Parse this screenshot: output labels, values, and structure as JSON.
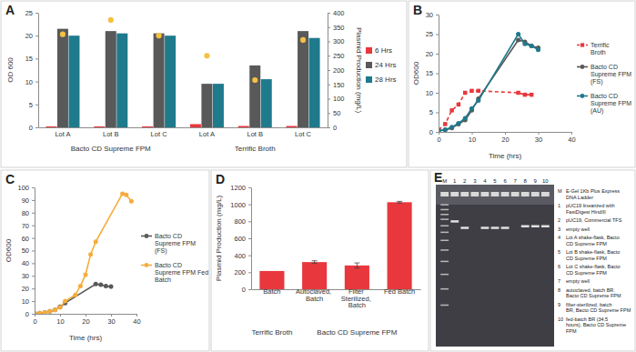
{
  "chart_data": [
    {
      "panel": "A",
      "type": "bar",
      "categories": [
        "Lot A",
        "Lot B",
        "Lot C",
        "Lot A",
        "Lot B",
        "Lot C"
      ],
      "category_groups": [
        {
          "label": "Bacto CD Supreme FPM",
          "size": 3
        },
        {
          "label": "Terrific Broth",
          "size": 3
        }
      ],
      "y_label": "OD 600",
      "y2_label": "Plasmid Production (mg/L)",
      "ylim": [
        0,
        25
      ],
      "yticks": [
        0,
        5,
        10,
        15,
        20,
        25
      ],
      "y2lim": [
        0,
        400
      ],
      "y2ticks": [
        0,
        50,
        100,
        150,
        200,
        250,
        300,
        350,
        400
      ],
      "legend": "right",
      "series": [
        {
          "name": "6 Hrs",
          "color": "#e8383d",
          "values": [
            0.2,
            0.2,
            0.2,
            0.7,
            0.3,
            0.3
          ]
        },
        {
          "name": "24 Hrs",
          "color": "#595959",
          "values": [
            21.5,
            21,
            20.5,
            9.5,
            13.5,
            21
          ]
        },
        {
          "name": "28 Hrs",
          "color": "#1f7a8c",
          "values": [
            20,
            20.5,
            20,
            9.5,
            10.5,
            19.5
          ]
        },
        {
          "type": "scatter",
          "axis": "y2",
          "marker": "circle",
          "color": "#f4c143",
          "values": [
            325,
            375,
            320,
            250,
            165,
            305
          ]
        }
      ]
    },
    {
      "panel": "B",
      "type": "line",
      "x_label": "Time (hrs)",
      "y_label": "OD600",
      "xlim": [
        0,
        40
      ],
      "xticks": [
        0,
        10,
        20,
        30,
        40
      ],
      "ylim": [
        0,
        30
      ],
      "yticks": [
        0,
        5,
        10,
        15,
        20,
        25,
        30
      ],
      "legend": "right",
      "series": [
        {
          "name": "Terrific Broth",
          "color": "#e8383d",
          "marker": "square",
          "line_style": "dashed",
          "x": [
            0,
            2,
            4,
            6,
            8,
            10,
            12,
            24,
            26,
            28
          ],
          "values": [
            0.5,
            2,
            5.5,
            7,
            10,
            10.5,
            10.5,
            10,
            9.5,
            9.5
          ]
        },
        {
          "name": "Bacto CD Supreme FPM (FS)",
          "color": "#595959",
          "marker": "circle",
          "line_style": "solid",
          "x": [
            0,
            2,
            4,
            6,
            8,
            10,
            12,
            24,
            26,
            28,
            30
          ],
          "values": [
            0.3,
            0.5,
            1,
            2,
            3,
            5.5,
            8.5,
            23.5,
            23,
            22,
            21.5
          ]
        },
        {
          "name": "Bacto CD Supreme FPM (AU)",
          "color": "#1f7a8c",
          "marker": "circle",
          "line_style": "solid",
          "x": [
            0,
            2,
            4,
            6,
            8,
            10,
            12,
            24,
            26,
            28,
            30
          ],
          "values": [
            0.3,
            0.6,
            1.2,
            2.2,
            3.5,
            6,
            8,
            25,
            22.5,
            22,
            21
          ]
        }
      ]
    },
    {
      "panel": "C",
      "type": "line",
      "x_label": "Time (hrs)",
      "y_label": "OD600",
      "xlim": [
        0,
        40
      ],
      "xticks": [
        0,
        10,
        20,
        30,
        40
      ],
      "ylim": [
        0,
        100
      ],
      "yticks": [
        0,
        10,
        20,
        30,
        40,
        50,
        60,
        70,
        80,
        90,
        100
      ],
      "legend": "right",
      "series": [
        {
          "name": "Bacto CD Supreme FPM (FS)",
          "color": "#595959",
          "marker": "circle",
          "line_style": "solid",
          "x": [
            0,
            2,
            4,
            6,
            8,
            10,
            12,
            24,
            26,
            28,
            30
          ],
          "values": [
            0.3,
            0.5,
            1,
            2,
            3,
            5.5,
            8.5,
            23.5,
            23,
            22,
            21.5
          ]
        },
        {
          "name": "Bacto CD Supreme FPM Fed Batch",
          "color": "#f5ad3c",
          "marker": "circle",
          "line_style": "solid",
          "x": [
            0,
            2,
            4,
            6,
            8,
            10,
            12,
            16,
            18,
            20,
            22,
            24,
            34.5,
            36,
            38
          ],
          "values": [
            0.3,
            0.5,
            1,
            2,
            3,
            5,
            10,
            15,
            22,
            31,
            47,
            57,
            95,
            94,
            89
          ]
        }
      ]
    },
    {
      "panel": "D",
      "type": "bar",
      "y_label": "Plasmid Production (mg/L)",
      "categories": [
        "Batch",
        "Autoclaved, Batch",
        "Filter Sterilized, Batch",
        "Fed Batch"
      ],
      "category_groups": [
        {
          "label": "Terrific Broth",
          "size": 1
        },
        {
          "label": "Bacto CD Supreme FPM",
          "size": 3
        }
      ],
      "ylim": [
        0,
        1200
      ],
      "yticks": [
        0,
        200,
        400,
        600,
        800,
        1000,
        1200
      ],
      "color": "#e8383d",
      "values": [
        215,
        320,
        280,
        1025
      ],
      "errors": [
        null,
        15,
        30,
        10
      ]
    }
  ],
  "gel": {
    "panel": "E",
    "lanes": [
      "M",
      "1",
      "2",
      "3",
      "4",
      "5",
      "6",
      "7",
      "8",
      "9",
      "10"
    ],
    "legend": [
      {
        "lane": "M",
        "text": "E-Gel 1Kb Plus Express DNA Ladder"
      },
      {
        "lane": "1",
        "text": "pUC19 linearized with FastDigest HindIII"
      },
      {
        "lane": "2",
        "text": "pUC19, Commercial TFS"
      },
      {
        "lane": "3",
        "text": "empty well"
      },
      {
        "lane": "4",
        "text": "Lot A shake-flask, Bacto CD Supreme FPM"
      },
      {
        "lane": "5",
        "text": "Lot B shake-flask, Bacto CD Supreme FPM"
      },
      {
        "lane": "6",
        "text": "Lot C shake-flask, Bacto CD Supreme FPM"
      },
      {
        "lane": "7",
        "text": "empty well"
      },
      {
        "lane": "8",
        "text": "autoclaved, batch BR, Bacto CD Supreme FPM"
      },
      {
        "lane": "9",
        "text": "filter-sterilized, batch BR, Bacto CD Supreme FPM"
      },
      {
        "lane": "10",
        "text": "fed-batch BR (34.5 hours), Bacto CD Supreme FPM"
      }
    ]
  }
}
